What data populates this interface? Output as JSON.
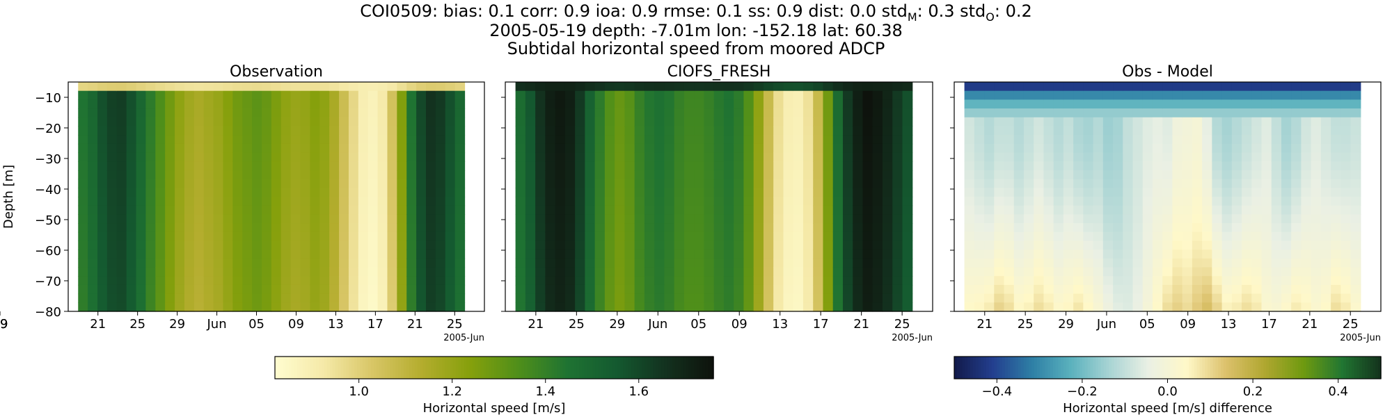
{
  "title": {
    "line1": "COI0509: bias: 0.1  corr: 0.9  ioa: 0.9  rmse: 0.1  ss: 0.9  dist: 0.0  std",
    "std_m_sub": "M",
    "std_m_value": ": 0.3  std",
    "std_o_sub": "O",
    "std_o_value": ": 0.2",
    "line2": "2005-05-19 depth: -7.01m lon: -152.18 lat: 60.38",
    "line3": "Subtidal horizontal speed from moored ADCP"
  },
  "colors": {
    "speed_scale": [
      "#fffdd0",
      "#f5e9a8",
      "#d8c666",
      "#b4ad2e",
      "#86a00c",
      "#4f8f1a",
      "#1f7332",
      "#145a30",
      "#13321f",
      "#0e120c"
    ],
    "diff_scale": [
      "#121a4a",
      "#233f8f",
      "#2e7fa5",
      "#5ab1bd",
      "#a8d4d4",
      "#eaf0e4",
      "#fff8c8",
      "#dcc16c",
      "#b0a730",
      "#6f9a10",
      "#217632",
      "#14321c"
    ]
  },
  "chart_data": [
    {
      "type": "heatmap",
      "title": "Observation",
      "ylabel": "Depth [m]",
      "ylim": [
        -80,
        -5
      ],
      "yticks": [
        -10,
        -20,
        -30,
        -40,
        -50,
        -60,
        -70,
        -80
      ],
      "xlim": [
        "2005-05-18",
        "2005-06-29"
      ],
      "xticks": [
        "21",
        "25",
        "29",
        "Jun",
        "05",
        "09",
        "13",
        "17",
        "21",
        "25",
        "29"
      ],
      "x_offset_label": "2005-Jun",
      "color_scale": "speed",
      "clim": [
        0.82,
        1.76
      ],
      "data_x_range": [
        "2005-05-19",
        "2005-06-27"
      ],
      "column_speed_m_s": [
        1.45,
        1.5,
        1.58,
        1.62,
        1.63,
        1.58,
        1.5,
        1.42,
        1.35,
        1.28,
        1.22,
        1.18,
        1.16,
        1.18,
        1.2,
        1.24,
        1.28,
        1.3,
        1.32,
        1.3,
        1.26,
        1.22,
        1.2,
        1.21,
        1.24,
        1.22,
        1.16,
        1.07,
        0.98,
        0.9,
        0.88,
        0.92,
        1.05,
        1.25,
        1.45,
        1.6,
        1.66,
        1.64,
        1.58,
        1.5
      ],
      "surface_speed_m_s": 0.9
    },
    {
      "type": "heatmap",
      "title": "CIOFS_FRESH",
      "ylim": [
        -80,
        -5
      ],
      "xlim": [
        "2005-05-18",
        "2005-06-29"
      ],
      "xticks": [
        "21",
        "25",
        "29",
        "Jun",
        "05",
        "09",
        "13",
        "17",
        "21",
        "25",
        "29"
      ],
      "x_offset_label": "2005-Jun",
      "color_scale": "speed",
      "clim": [
        0.82,
        1.76
      ],
      "data_x_range": [
        "2005-05-19",
        "2005-06-27"
      ],
      "column_speed_m_s": [
        1.48,
        1.56,
        1.66,
        1.72,
        1.74,
        1.72,
        1.64,
        1.52,
        1.42,
        1.34,
        1.3,
        1.33,
        1.4,
        1.44,
        1.46,
        1.44,
        1.4,
        1.38,
        1.38,
        1.4,
        1.43,
        1.45,
        1.42,
        1.34,
        1.22,
        1.08,
        0.96,
        0.9,
        0.89,
        0.95,
        1.08,
        1.28,
        1.48,
        1.64,
        1.72,
        1.76,
        1.74,
        1.7,
        1.64,
        1.58
      ],
      "surface_speed_m_s": 1.7
    },
    {
      "type": "heatmap",
      "title": "Obs - Model",
      "ylim": [
        -80,
        -5
      ],
      "xlim": [
        "2005-05-18",
        "2005-06-29"
      ],
      "xticks": [
        "21",
        "25",
        "29",
        "Jun",
        "05",
        "09",
        "13",
        "17",
        "21",
        "25",
        "29"
      ],
      "x_offset_label": "2005-Jun",
      "color_scale": "diff",
      "clim": [
        -0.5,
        0.5
      ],
      "data_x_range": [
        "2005-05-19",
        "2005-06-27"
      ],
      "column_diff_bottom_m_s": [
        0.05,
        0.06,
        0.08,
        0.12,
        0.1,
        0.06,
        0.07,
        0.1,
        0.08,
        0.05,
        0.06,
        0.09,
        0.06,
        0.02,
        -0.02,
        -0.05,
        -0.06,
        -0.04,
        0.0,
        0.05,
        0.1,
        0.12,
        0.1,
        0.13,
        0.16,
        0.12,
        0.07,
        0.08,
        0.1,
        0.08,
        0.03,
        0.02,
        0.05,
        0.08,
        0.06,
        0.03,
        0.05,
        0.1,
        0.08,
        0.04
      ],
      "column_diff_mid_m_s": [
        -0.08,
        -0.1,
        -0.12,
        -0.1,
        -0.1,
        -0.12,
        -0.1,
        -0.08,
        -0.1,
        -0.12,
        -0.1,
        -0.13,
        -0.14,
        -0.12,
        -0.15,
        -0.14,
        -0.1,
        -0.08,
        -0.06,
        -0.05,
        -0.06,
        -0.02,
        -0.01,
        0.0,
        -0.05,
        -0.12,
        -0.14,
        -0.12,
        -0.1,
        -0.08,
        -0.06,
        -0.1,
        -0.14,
        -0.12,
        -0.08,
        -0.06,
        -0.08,
        -0.1,
        -0.1,
        -0.09
      ],
      "top_rows_diff_m_s": [
        -0.42,
        -0.3,
        -0.22,
        -0.16
      ]
    }
  ],
  "colorbars": [
    {
      "label": "Horizontal speed [m/s]",
      "color_scale": "speed",
      "range": [
        0.82,
        1.76
      ],
      "ticks": [
        1.0,
        1.2,
        1.4,
        1.6
      ],
      "tick_labels": [
        "1.0",
        "1.2",
        "1.4",
        "1.6"
      ]
    },
    {
      "label": "Horizontal speed [m/s] difference",
      "color_scale": "diff",
      "range": [
        -0.5,
        0.5
      ],
      "ticks": [
        -0.4,
        -0.2,
        0.0,
        0.2,
        0.4
      ],
      "tick_labels": [
        "−0.4",
        "−0.2",
        "0.0",
        "0.2",
        "0.4"
      ]
    }
  ]
}
